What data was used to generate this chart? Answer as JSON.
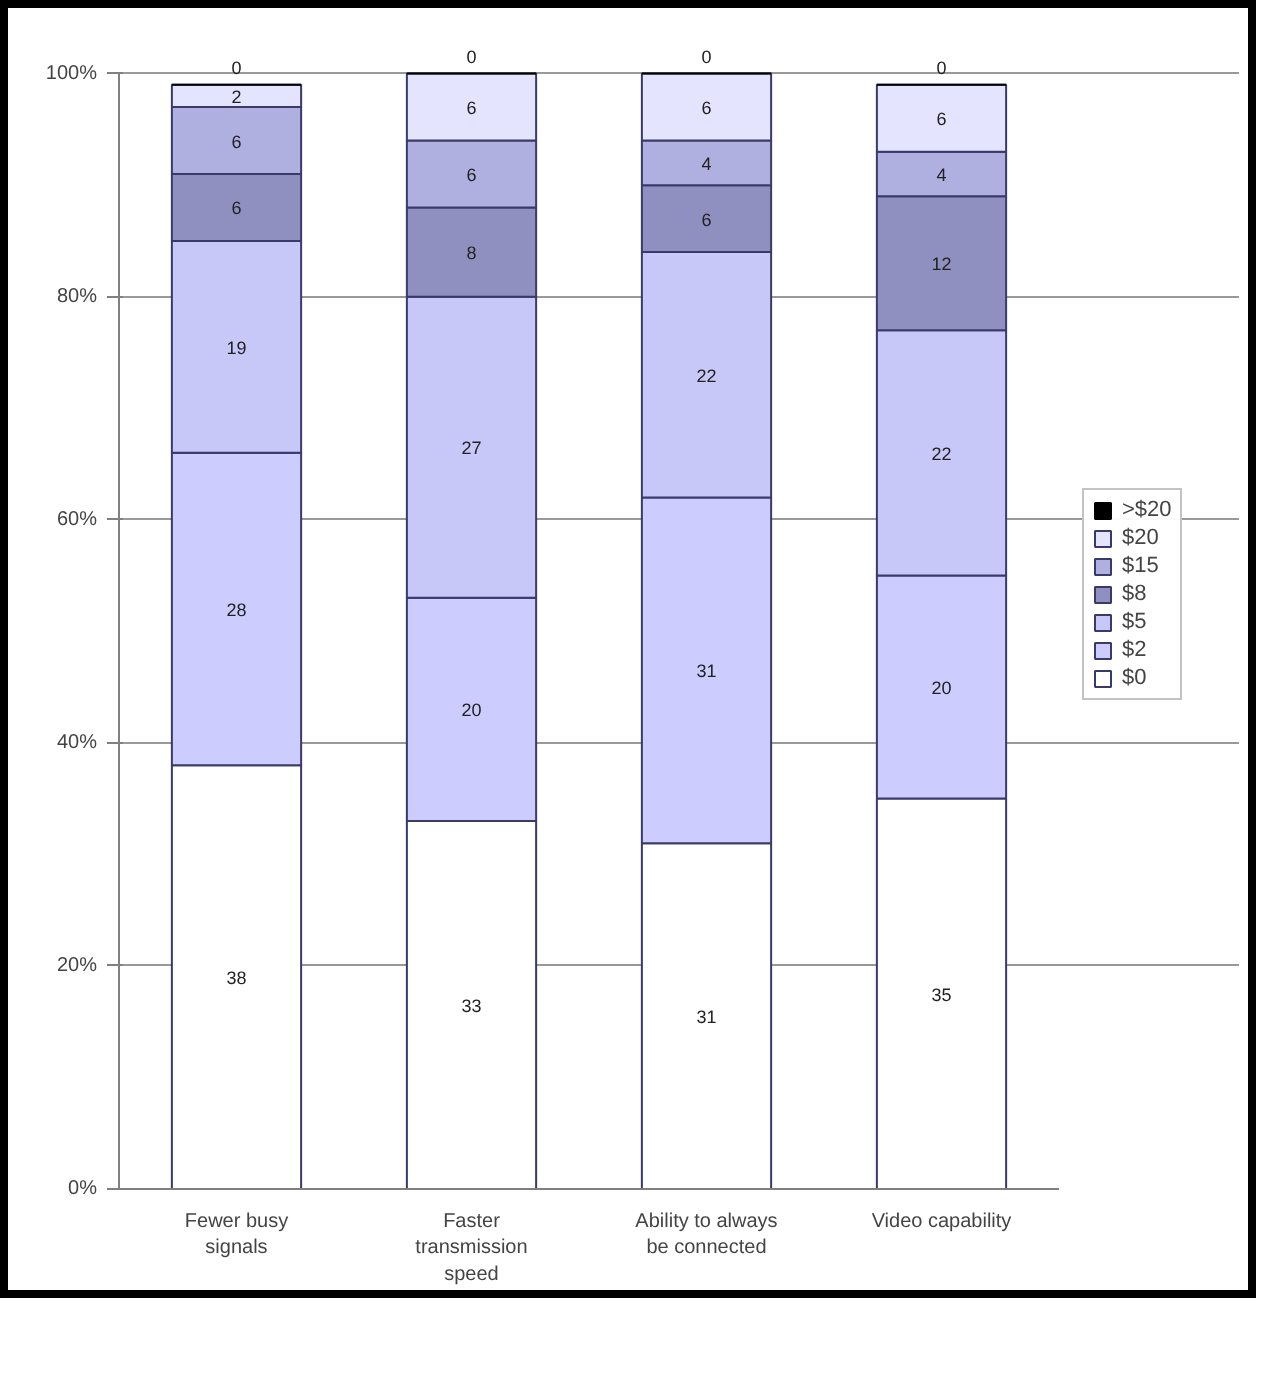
{
  "chart_data": {
    "type": "bar",
    "stacked": true,
    "categories": [
      "Fewer busy\nsignals",
      "Faster\ntransmission\nspeed",
      "Ability to always\nbe connected",
      "Video capability"
    ],
    "series": [
      {
        "name": "$0",
        "color": "#ffffff",
        "values": [
          38,
          33,
          31,
          35
        ]
      },
      {
        "name": "$2",
        "color": "#ccccff",
        "values": [
          28,
          20,
          31,
          20
        ]
      },
      {
        "name": "$5",
        "color": "#c8c8f8",
        "values": [
          19,
          27,
          22,
          22
        ]
      },
      {
        "name": "$8",
        "color": "#9090c0",
        "values": [
          6,
          8,
          6,
          12
        ]
      },
      {
        "name": "$15",
        "color": "#b0b0e0",
        "values": [
          6,
          6,
          4,
          4
        ]
      },
      {
        "name": "$20",
        "color": "#e4e4ff",
        "values": [
          2,
          6,
          6,
          6
        ]
      },
      {
        "name": ">$20",
        "color": "#000000",
        "values": [
          0,
          0,
          0,
          0
        ]
      }
    ],
    "ylim": [
      0,
      100
    ],
    "yticks": [
      {
        "value": 0,
        "label": "0%"
      },
      {
        "value": 20,
        "label": "20%"
      },
      {
        "value": 40,
        "label": "40%"
      },
      {
        "value": 60,
        "label": "60%"
      },
      {
        "value": 80,
        "label": "80%"
      },
      {
        "value": 100,
        "label": "100%"
      }
    ],
    "grid": "y",
    "legend": "right",
    "data_labels": true
  }
}
